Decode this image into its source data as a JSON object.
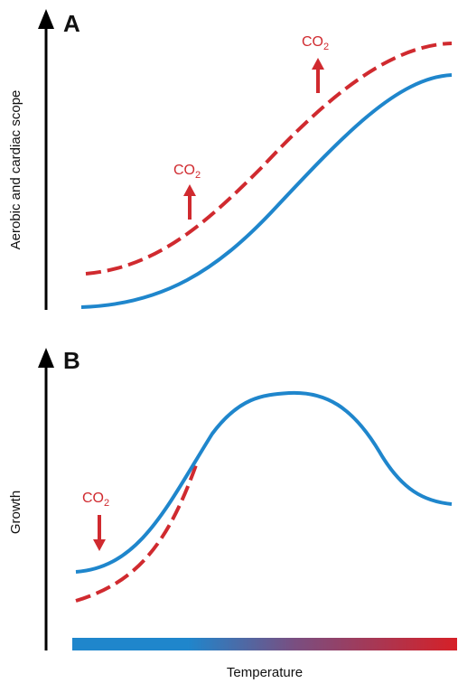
{
  "colors": {
    "baseline_curve": "#1f86cc",
    "elevated_co2_curve": "#d02a2f",
    "axis": "#000000",
    "gradient_cold": "#1f86cc",
    "gradient_mid": "#7a4e80",
    "gradient_hot": "#d62027"
  },
  "panel_a": {
    "letter": "A",
    "y_label": "Aerobic and cardiac scope",
    "annotations": [
      {
        "text": "CO",
        "subscript": "2",
        "direction": "up"
      },
      {
        "text": "CO",
        "subscript": "2",
        "direction": "up"
      }
    ]
  },
  "panel_b": {
    "letter": "B",
    "y_label": "Growth",
    "annotations": [
      {
        "text": "CO",
        "subscript": "2",
        "direction": "down"
      }
    ]
  },
  "x_label": "Temperature"
}
